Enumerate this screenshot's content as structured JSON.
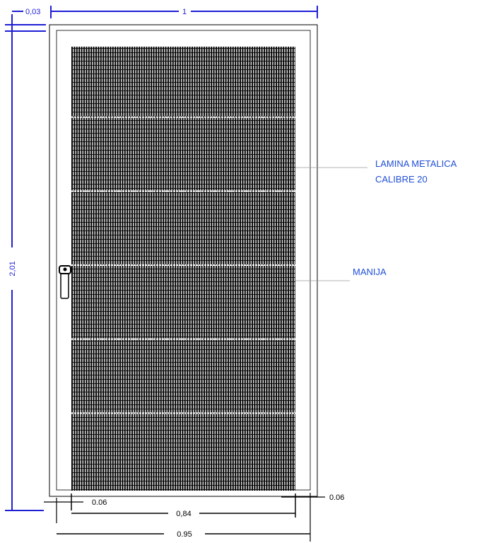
{
  "colors": {
    "dimension": "#1f1fd6",
    "geometry": "#000000",
    "callout_line": "#9a9a9a",
    "label": "#1f4fd6"
  },
  "dimensions": {
    "top_width": "1",
    "top_frame": "0,03",
    "height": "2,01",
    "left_margin": "0.06",
    "right_margin": "0.06",
    "panel_width": "0,84",
    "door_width": "0.95"
  },
  "labels": {
    "sheet_line1": "LAMINA METALICA",
    "sheet_line2": "CALIBRE 20",
    "handle": "MANIJA"
  },
  "panel": {
    "horizontal_divisions": 6
  }
}
